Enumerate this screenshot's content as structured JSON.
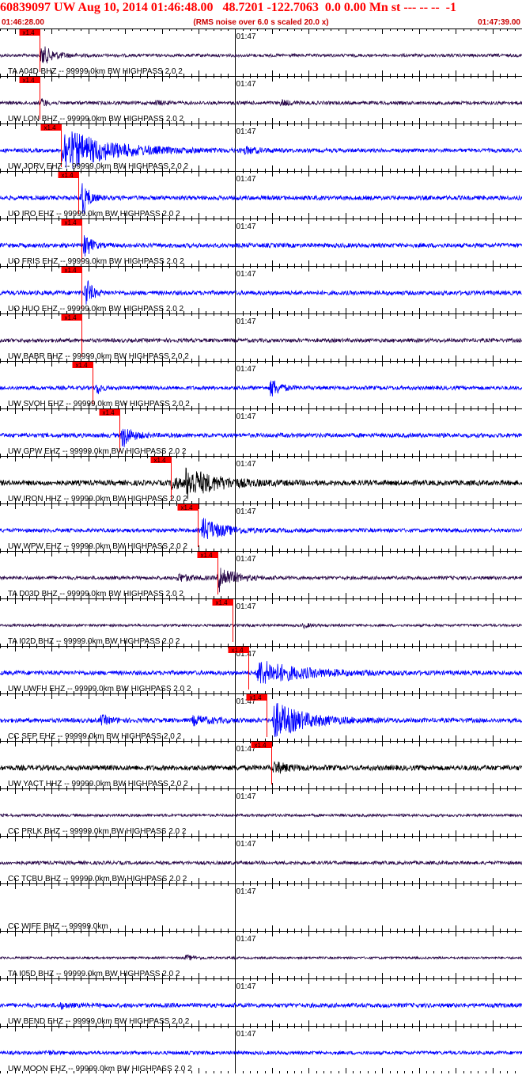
{
  "header": {
    "title": "60839097 UW Aug 10, 2014 01:46:48.00   48.7201 -122.7063  0.0 0.00 Mn st --- -- --  -1",
    "start_time": "01:46:28.00",
    "note": "(RMS noise over 6.0 s scaled 20.0 x)",
    "end_time": "01:47:39.00"
  },
  "chart_data": {
    "type": "line",
    "title": "60839097 UW Aug 10, 2014 01:46:48.00",
    "xlabel": "",
    "ylabel": "",
    "time_range": [
      "01:46:28.00",
      "01:47:39.00"
    ],
    "minute_tick_label": "01:47",
    "minute_tick_time_s": 32,
    "pick_label": "x1.4",
    "series": [
      {
        "label": "TA A04D BHZ -- 99999.0km BW  HIGHPASS  2.0  2",
        "color": "#2a0a4a",
        "amp": 0.18,
        "pick_s": 5.4,
        "bursts": [
          {
            "t": 5.4,
            "amp": 1.4,
            "dur": 3.5
          }
        ]
      },
      {
        "label": "UW LON BHZ -- 99999.0km BW  HIGHPASS  2.0  2",
        "color": "#2a0a4a",
        "amp": 0.2,
        "pick_s": 5.4,
        "bursts": [
          {
            "t": 5.5,
            "amp": 0.8,
            "dur": 1.2
          },
          {
            "t": 21,
            "amp": 0.3,
            "dur": 2
          },
          {
            "t": 38,
            "amp": 0.35,
            "dur": 3
          }
        ]
      },
      {
        "label": "UW JORV EHZ -- 99999.0km BW  HIGHPASS  2.0  2",
        "color": "#0000ff",
        "amp": 0.22,
        "pick_s": 8.3,
        "bursts": [
          {
            "t": 8.3,
            "amp": 2.6,
            "dur": 13
          },
          {
            "t": 33,
            "amp": 0.4,
            "dur": 4
          }
        ]
      },
      {
        "label": "UO IRO EHZ -- 99999.0km BW  HIGHPASS  2.0  2",
        "color": "#0000ff",
        "amp": 0.25,
        "pick_s": 10.7,
        "bursts": [
          {
            "t": 10.9,
            "amp": 3.0,
            "dur": 1.8
          }
        ]
      },
      {
        "label": "UO FRIS EHZ -- 99999.0km BW  HIGHPASS  2.0  2",
        "color": "#0000ff",
        "amp": 0.25,
        "pick_s": 11.1,
        "bursts": [
          {
            "t": 11.3,
            "amp": 2.5,
            "dur": 1.6
          }
        ]
      },
      {
        "label": "UO HUO EHZ -- 99999.0km BW  HIGHPASS  2.0  2",
        "color": "#0000ff",
        "amp": 0.25,
        "pick_s": 11.1,
        "bursts": [
          {
            "t": 11.4,
            "amp": 2.8,
            "dur": 1.6
          }
        ]
      },
      {
        "label": "UW BABR BHZ -- 99999.0km BW  HIGHPASS  2.0  2",
        "color": "#2a0a4a",
        "amp": 0.22,
        "pick_s": 11.1,
        "bursts": []
      },
      {
        "label": "UW SVOH EHZ -- 99999.0km BW  HIGHPASS  2.0  2",
        "color": "#0000ff",
        "amp": 0.22,
        "pick_s": 12.6,
        "bursts": [
          {
            "t": 13.0,
            "amp": 1.2,
            "dur": 1.2
          },
          {
            "t": 36.6,
            "amp": 1.4,
            "dur": 2.5
          }
        ]
      },
      {
        "label": "UW GPW EHZ -- 99999.0km BW  HIGHPASS  2.0  2",
        "color": "#0000ff",
        "amp": 0.25,
        "pick_s": 16.2,
        "bursts": [
          {
            "t": 16.4,
            "amp": 1.8,
            "dur": 2.5
          }
        ]
      },
      {
        "label": "UW IRON HHZ -- 99999.0km BW  HIGHPASS  2.0  2",
        "color": "#000000",
        "amp": 0.3,
        "pick_s": 23.2,
        "bursts": [
          {
            "t": 23.2,
            "amp": 1.2,
            "dur": 2
          },
          {
            "t": 25,
            "amp": 1.8,
            "dur": 9
          }
        ]
      },
      {
        "label": "UW WPW EHZ -- 99999.0km BW  HIGHPASS  2.0  2",
        "color": "#0000ff",
        "amp": 0.22,
        "pick_s": 26.9,
        "bursts": [
          {
            "t": 27.3,
            "amp": 1.5,
            "dur": 6
          }
        ]
      },
      {
        "label": "TA D03D BHZ -- 99999.0km BW  HIGHPASS  2.0  2",
        "color": "#2a0a4a",
        "amp": 0.2,
        "pick_s": 29.6,
        "bursts": [
          {
            "t": 24,
            "amp": 0.5,
            "dur": 4
          },
          {
            "t": 29.5,
            "amp": 1.9,
            "dur": 4
          }
        ]
      },
      {
        "label": "TA I02D BHZ -- 99999.0km BW  HIGHPASS  2.0  2",
        "color": "#2a0a4a",
        "amp": 0.15,
        "pick_s": 31.6,
        "bursts": [
          {
            "t": 41,
            "amp": 0.3,
            "dur": 2
          }
        ]
      },
      {
        "label": "UW UWFH EHZ -- 99999.0km BW  HIGHPASS  2.0  2",
        "color": "#0000ff",
        "amp": 0.25,
        "pick_s": 33.8,
        "bursts": [
          {
            "t": 34.8,
            "amp": 1.5,
            "dur": 12
          }
        ]
      },
      {
        "label": "CC SEP EHZ -- 99999.0km BW  HIGHPASS  2.0  2",
        "color": "#0000ff",
        "amp": 0.25,
        "pick_s": 36.2,
        "bursts": [
          {
            "t": 13.5,
            "amp": 0.6,
            "dur": 3
          },
          {
            "t": 26,
            "amp": 0.5,
            "dur": 6
          },
          {
            "t": 37,
            "amp": 2.2,
            "dur": 9
          }
        ]
      },
      {
        "label": "UW YACT HHZ -- 99999.0km BW  HIGHPASS  2.0  2",
        "color": "#000000",
        "amp": 0.3,
        "pick_s": 36.9,
        "bursts": [
          {
            "t": 37,
            "amp": 0.7,
            "dur": 4
          }
        ]
      },
      {
        "label": "CC PRLK BHZ -- 99999.0km BW  HIGHPASS  2.0  2",
        "color": "#2a0a4a",
        "amp": 0.16,
        "pick_s": null,
        "bursts": []
      },
      {
        "label": "CC TCBU BHZ -- 99999.0km BW  HIGHPASS  2.0  2",
        "color": "#2a0a4a",
        "amp": 0.2,
        "pick_s": null,
        "bursts": []
      },
      {
        "label": "CC WIFE BHZ -- 99999.0km",
        "color": "#2a0a4a",
        "amp": 0,
        "pick_s": null,
        "bursts": []
      },
      {
        "label": "TA I05D BHZ -- 99999.0km BW  HIGHPASS  2.0  2",
        "color": "#2a0a4a",
        "amp": 0.12,
        "pick_s": null,
        "bursts": [
          {
            "t": 25,
            "amp": 0.35,
            "dur": 3
          }
        ]
      },
      {
        "label": "UW BEND EHZ -- 99999.0km BW  HIGHPASS  2.0  2",
        "color": "#0000ff",
        "amp": 0.25,
        "pick_s": null,
        "bursts": [
          {
            "t": 8,
            "amp": 0.4,
            "dur": 2
          }
        ]
      },
      {
        "label": "UW MOON EHZ -- 99999.0km BW  HIGHPASS  2.0  2",
        "color": "#0000ff",
        "amp": 0.2,
        "pick_s": null,
        "bursts": [
          {
            "t": 6,
            "amp": 0.3,
            "dur": 2
          }
        ]
      }
    ],
    "grid": false,
    "legend": "none"
  }
}
